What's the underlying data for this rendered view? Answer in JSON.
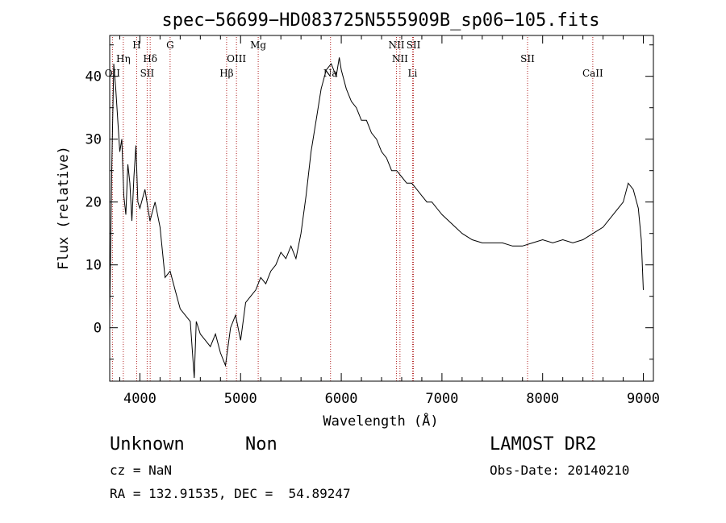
{
  "chart_data": {
    "type": "line",
    "title": "spec−56699−HD083725N555909B_sp06−105.fits",
    "xlabel": "Wavelength (Å)",
    "ylabel": "Flux (relative)",
    "xlim": [
      3700,
      9100
    ],
    "ylim": [
      -8.5,
      46.5
    ],
    "xticks": [
      4000,
      5000,
      6000,
      7000,
      8000,
      9000
    ],
    "yticks": [
      0,
      10,
      20,
      30,
      40
    ],
    "grid": false,
    "line_color": "#000000",
    "marker_color": "#b22222",
    "series": [
      {
        "x": [
          3700,
          3720,
          3740,
          3760,
          3780,
          3800,
          3820,
          3840,
          3860,
          3880,
          3900,
          3920,
          3940,
          3960,
          3980,
          4000,
          4050,
          4100,
          4150,
          4200,
          4250,
          4300,
          4350,
          4400,
          4450,
          4500,
          4540,
          4560,
          4600,
          4650,
          4700,
          4750,
          4800,
          4850,
          4900,
          4950,
          5000,
          5050,
          5100,
          5150,
          5200,
          5250,
          5300,
          5350,
          5400,
          5450,
          5500,
          5550,
          5600,
          5650,
          5700,
          5750,
          5800,
          5850,
          5900,
          5950,
          5980,
          6000,
          6050,
          6100,
          6150,
          6200,
          6250,
          6300,
          6350,
          6400,
          6450,
          6500,
          6550,
          6600,
          6650,
          6700,
          6750,
          6800,
          6850,
          6900,
          6950,
          7000,
          7100,
          7200,
          7300,
          7400,
          7500,
          7600,
          7700,
          7800,
          7900,
          8000,
          8100,
          8200,
          8300,
          8400,
          8500,
          8600,
          8700,
          8800,
          8850,
          8900,
          8950,
          8980,
          9000
        ],
        "y": [
          2,
          25,
          42,
          38,
          33,
          28,
          30,
          21,
          18,
          26,
          23,
          17,
          24,
          29,
          20,
          19,
          22,
          17,
          20,
          16,
          8,
          9,
          6,
          3,
          2,
          1,
          -8,
          1,
          -1,
          -2,
          -3,
          -1,
          -4,
          -6,
          0,
          2,
          -2,
          4,
          5,
          6,
          8,
          7,
          9,
          10,
          12,
          11,
          13,
          11,
          15,
          21,
          28,
          33,
          38,
          41,
          42,
          40,
          43,
          41,
          38,
          36,
          35,
          33,
          33,
          31,
          30,
          28,
          27,
          25,
          25,
          24,
          23,
          23,
          22,
          21,
          20,
          20,
          19,
          18,
          16.5,
          15,
          14,
          13.5,
          13.5,
          13.5,
          13,
          13,
          13.5,
          14,
          13.5,
          14,
          13.5,
          14,
          15,
          16,
          18,
          20,
          23,
          22,
          19,
          14,
          6
        ]
      }
    ],
    "line_markers": [
      {
        "label": "OII",
        "x": 3727,
        "row": 3
      },
      {
        "label": "Hη",
        "x": 3835,
        "row": 2
      },
      {
        "label": "H",
        "x": 3968,
        "row": 1
      },
      {
        "label": "Hδ",
        "x": 4102,
        "row": 2
      },
      {
        "label": "SII",
        "x": 4072,
        "row": 3
      },
      {
        "label": "G",
        "x": 4300,
        "row": 1
      },
      {
        "label": "Hβ",
        "x": 4861,
        "row": 3
      },
      {
        "label": "OIII",
        "x": 4959,
        "row": 2
      },
      {
        "label": "Mg",
        "x": 5175,
        "row": 1
      },
      {
        "label": "Na",
        "x": 5893,
        "row": 3
      },
      {
        "label": "NII",
        "x": 6548,
        "row": 1
      },
      {
        "label": "NII",
        "x": 6583,
        "row": 2
      },
      {
        "label": "SII",
        "x": 6717,
        "row": 1
      },
      {
        "label": "Li",
        "x": 6708,
        "row": 3
      },
      {
        "label": "SII",
        "x": 7850,
        "row": 2
      },
      {
        "label": "CaII",
        "x": 8498,
        "row": 3
      }
    ]
  },
  "footer": {
    "object_class": "Unknown",
    "object_subclass": "Non",
    "survey": "LAMOST DR2",
    "redshift": "cz = NaN",
    "obs_date": "Obs-Date: 20140210",
    "coordinates": "RA = 132.91535, DEC =  54.89247"
  }
}
